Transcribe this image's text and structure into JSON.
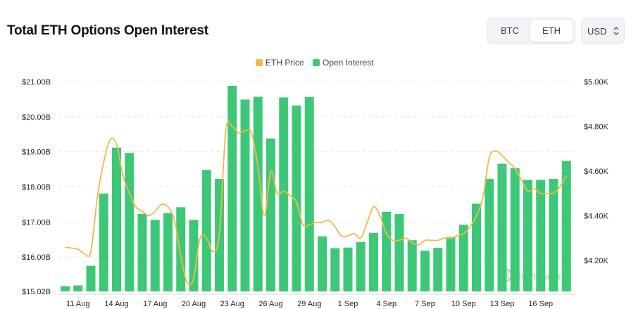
{
  "header": {
    "title": "Total ETH Options Open Interest",
    "asset_options": [
      "BTC",
      "ETH"
    ],
    "selected_asset": "ETH",
    "currency": "USD",
    "currency_icon": "up-down-chevron-icon"
  },
  "watermark": {
    "text": "coinglass",
    "icon": "coinglass-logo-icon"
  },
  "colors": {
    "bars": "#3dc878",
    "line": "#f0b94a",
    "grid": "#e6e8ec"
  },
  "chart_data": {
    "type": "bar",
    "legend": [
      "ETH Price",
      "Open Interest"
    ],
    "legend_position": "top-center",
    "grid": true,
    "x_tick_labels": [
      "11 Aug",
      "14 Aug",
      "17 Aug",
      "20 Aug",
      "23 Aug",
      "26 Aug",
      "29 Aug",
      "1 Sep",
      "4 Sep",
      "7 Sep",
      "10 Sep",
      "13 Sep",
      "16 Sep"
    ],
    "x_tick_indices": [
      1,
      4,
      7,
      10,
      13,
      16,
      19,
      22,
      25,
      28,
      31,
      34,
      37
    ],
    "y_left": {
      "ticks": [
        "$15.02B",
        "$16.00B",
        "$17.00B",
        "$18.00B",
        "$19.00B",
        "$20.00B",
        "$21.00B"
      ],
      "range": [
        15.02,
        21.0
      ]
    },
    "y_right": {
      "ticks": [
        "$4.20K",
        "$4.40K",
        "$4.60K",
        "$4.80K",
        "$5.00K"
      ],
      "range": [
        4.03,
        5.0
      ]
    },
    "series": [
      {
        "name": "Open Interest",
        "kind": "bar",
        "axis": "left",
        "values": [
          15.17,
          15.19,
          15.75,
          17.81,
          19.12,
          18.97,
          17.23,
          17.06,
          17.25,
          17.42,
          17.06,
          18.48,
          18.23,
          20.88,
          20.49,
          20.57,
          19.38,
          20.55,
          20.32,
          20.56,
          16.59,
          16.25,
          16.27,
          16.43,
          16.69,
          17.29,
          17.23,
          16.48,
          16.18,
          16.26,
          16.57,
          16.92,
          17.52,
          18.23,
          18.66,
          18.53,
          18.2,
          18.2,
          18.23,
          18.74
        ]
      },
      {
        "name": "ETH Price",
        "kind": "line",
        "axis": "right",
        "x": [
          0,
          0.5,
          1,
          1.5,
          2,
          2.5,
          3,
          3.5,
          4,
          4.5,
          5,
          5.5,
          6,
          6.5,
          7,
          7.5,
          8,
          8.5,
          9,
          9.5,
          10,
          10.5,
          11,
          11.5,
          12,
          12.5,
          13,
          13.5,
          14,
          14.5,
          15,
          15.5,
          16,
          16.5,
          17,
          17.5,
          18,
          18.5,
          19,
          19.5,
          20,
          20.5,
          21,
          21.5,
          22,
          22.5,
          23,
          23.5,
          24,
          24.5,
          25,
          25.5,
          26,
          26.5,
          27,
          27.5,
          28,
          28.5,
          29,
          29.5,
          30,
          30.5,
          31,
          31.5,
          32,
          32.5,
          33,
          33.5,
          34,
          34.5,
          35,
          35.5,
          36,
          36.5,
          37,
          37.5,
          38,
          38.5,
          39
        ],
        "values": [
          4.26,
          4.255,
          4.25,
          4.23,
          4.24,
          4.48,
          4.64,
          4.74,
          4.72,
          4.58,
          4.5,
          4.44,
          4.42,
          4.4,
          4.42,
          4.45,
          4.44,
          4.38,
          4.22,
          4.1,
          4.12,
          4.3,
          4.3,
          4.24,
          4.32,
          4.78,
          4.8,
          4.77,
          4.78,
          4.77,
          4.62,
          4.4,
          4.6,
          4.5,
          4.51,
          4.49,
          4.46,
          4.36,
          4.36,
          4.37,
          4.37,
          4.38,
          4.35,
          4.31,
          4.31,
          4.32,
          4.3,
          4.37,
          4.44,
          4.4,
          4.32,
          4.29,
          4.29,
          4.3,
          4.28,
          4.27,
          4.29,
          4.29,
          4.29,
          4.3,
          4.3,
          4.31,
          4.32,
          4.35,
          4.4,
          4.48,
          4.66,
          4.69,
          4.67,
          4.64,
          4.61,
          4.56,
          4.51,
          4.52,
          4.5,
          4.5,
          4.5,
          4.53,
          4.58
        ]
      }
    ]
  }
}
